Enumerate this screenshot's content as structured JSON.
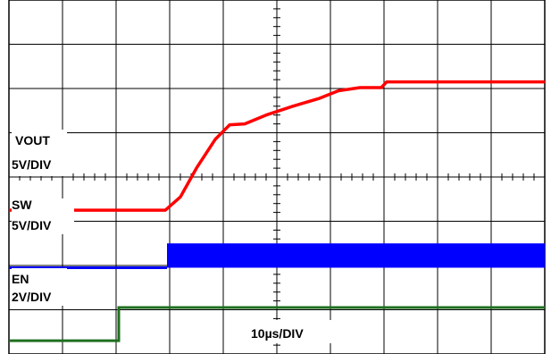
{
  "chart_data": {
    "type": "line",
    "x_divisions": 10,
    "y_divisions": 8,
    "grid": true,
    "timebase_label": "10µs/DIV",
    "channels": [
      {
        "label": "VOUT",
        "scale_label": "5V/DIV",
        "color": "#ff0000",
        "style": "line",
        "points_div": [
          [
            0.0,
            3.25
          ],
          [
            2.92,
            3.25
          ],
          [
            3.2,
            3.55
          ],
          [
            3.5,
            4.2
          ],
          [
            3.85,
            4.85
          ],
          [
            4.12,
            5.18
          ],
          [
            4.4,
            5.2
          ],
          [
            4.8,
            5.4
          ],
          [
            5.3,
            5.6
          ],
          [
            5.8,
            5.78
          ],
          [
            6.15,
            5.95
          ],
          [
            6.55,
            6.02
          ],
          [
            6.95,
            6.02
          ],
          [
            7.05,
            6.15
          ],
          [
            10.0,
            6.15
          ]
        ]
      },
      {
        "label": "SW",
        "scale_label": "5V/DIV",
        "color": "#0000ff",
        "style": "switching",
        "baseline_div": 1.95,
        "high_div": 2.5,
        "start_div": 2.95
      },
      {
        "label": "EN",
        "scale_label": "2V/DIV",
        "color": "#1f6f1f",
        "style": "step",
        "low_div": 0.3,
        "high_div": 1.05,
        "step_div": 2.05
      }
    ]
  }
}
